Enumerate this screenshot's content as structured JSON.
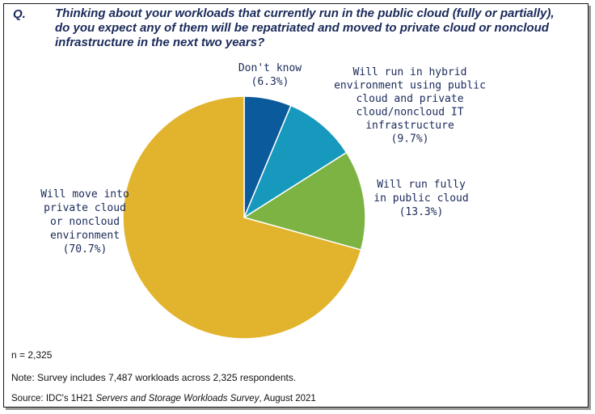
{
  "question": {
    "label": "Q.",
    "text": "Thinking about your workloads that currently run in the public cloud (fully or partially), do you expect any of them will be repatriated and moved to private cloud or noncloud infrastructure in the next two years?"
  },
  "chart_data": {
    "type": "pie",
    "start_angle_deg": 0,
    "direction": "clockwise",
    "slices": [
      {
        "label_lines": [
          "Don't know",
          "(6.3%)"
        ],
        "value": 6.3,
        "color": "#0b5a9c"
      },
      {
        "label_lines": [
          "Will run in hybrid",
          "environment using public",
          "cloud and private",
          "cloud/noncloud IT",
          "infrastructure",
          "(9.7%)"
        ],
        "value": 9.7,
        "color": "#1799bd"
      },
      {
        "label_lines": [
          "Will run fully",
          "in public cloud",
          "(13.3%)"
        ],
        "value": 13.3,
        "color": "#7cb342"
      },
      {
        "label_lines": [
          "Will move into",
          "private cloud",
          "or noncloud",
          "environment",
          "(70.7%)"
        ],
        "value": 70.7,
        "color": "#e2b32c"
      }
    ]
  },
  "footer": {
    "n": "n = 2,325",
    "note": "Note: Survey includes 7,487 workloads across 2,325 respondents.",
    "source_prefix": "Source: IDC's 1H21 ",
    "source_title": "Servers and Storage Workloads Survey",
    "source_suffix": ", August 2021"
  }
}
